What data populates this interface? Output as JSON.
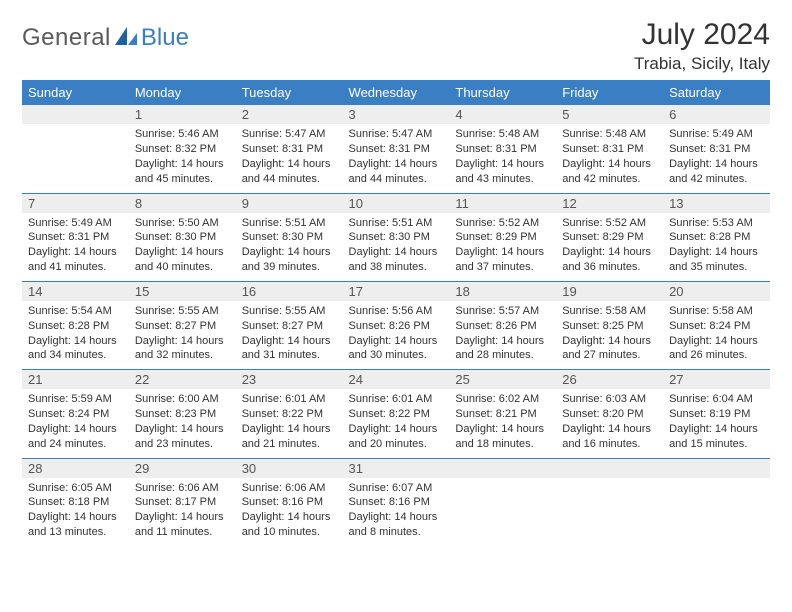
{
  "brand": {
    "name_part1": "General",
    "name_part2": "Blue",
    "color_text": "#5a5a5a",
    "color_accent": "#3a7fc4"
  },
  "header": {
    "month_title": "July 2024",
    "location": "Trabia, Sicily, Italy"
  },
  "style": {
    "header_bg": "#3a7fc4",
    "header_fg": "#ffffff",
    "daynum_bg": "#eeeeee",
    "row_border": "#3a7fc4",
    "body_bg": "#ffffff",
    "text_color": "#333333",
    "th_fontsize": 13,
    "daynum_fontsize": 13,
    "content_fontsize": 11
  },
  "weekdays": [
    "Sunday",
    "Monday",
    "Tuesday",
    "Wednesday",
    "Thursday",
    "Friday",
    "Saturday"
  ],
  "weeks": [
    [
      {
        "n": "",
        "lines": [
          "",
          "",
          "",
          ""
        ]
      },
      {
        "n": "1",
        "lines": [
          "Sunrise: 5:46 AM",
          "Sunset: 8:32 PM",
          "Daylight: 14 hours",
          "and 45 minutes."
        ]
      },
      {
        "n": "2",
        "lines": [
          "Sunrise: 5:47 AM",
          "Sunset: 8:31 PM",
          "Daylight: 14 hours",
          "and 44 minutes."
        ]
      },
      {
        "n": "3",
        "lines": [
          "Sunrise: 5:47 AM",
          "Sunset: 8:31 PM",
          "Daylight: 14 hours",
          "and 44 minutes."
        ]
      },
      {
        "n": "4",
        "lines": [
          "Sunrise: 5:48 AM",
          "Sunset: 8:31 PM",
          "Daylight: 14 hours",
          "and 43 minutes."
        ]
      },
      {
        "n": "5",
        "lines": [
          "Sunrise: 5:48 AM",
          "Sunset: 8:31 PM",
          "Daylight: 14 hours",
          "and 42 minutes."
        ]
      },
      {
        "n": "6",
        "lines": [
          "Sunrise: 5:49 AM",
          "Sunset: 8:31 PM",
          "Daylight: 14 hours",
          "and 42 minutes."
        ]
      }
    ],
    [
      {
        "n": "7",
        "lines": [
          "Sunrise: 5:49 AM",
          "Sunset: 8:31 PM",
          "Daylight: 14 hours",
          "and 41 minutes."
        ]
      },
      {
        "n": "8",
        "lines": [
          "Sunrise: 5:50 AM",
          "Sunset: 8:30 PM",
          "Daylight: 14 hours",
          "and 40 minutes."
        ]
      },
      {
        "n": "9",
        "lines": [
          "Sunrise: 5:51 AM",
          "Sunset: 8:30 PM",
          "Daylight: 14 hours",
          "and 39 minutes."
        ]
      },
      {
        "n": "10",
        "lines": [
          "Sunrise: 5:51 AM",
          "Sunset: 8:30 PM",
          "Daylight: 14 hours",
          "and 38 minutes."
        ]
      },
      {
        "n": "11",
        "lines": [
          "Sunrise: 5:52 AM",
          "Sunset: 8:29 PM",
          "Daylight: 14 hours",
          "and 37 minutes."
        ]
      },
      {
        "n": "12",
        "lines": [
          "Sunrise: 5:52 AM",
          "Sunset: 8:29 PM",
          "Daylight: 14 hours",
          "and 36 minutes."
        ]
      },
      {
        "n": "13",
        "lines": [
          "Sunrise: 5:53 AM",
          "Sunset: 8:28 PM",
          "Daylight: 14 hours",
          "and 35 minutes."
        ]
      }
    ],
    [
      {
        "n": "14",
        "lines": [
          "Sunrise: 5:54 AM",
          "Sunset: 8:28 PM",
          "Daylight: 14 hours",
          "and 34 minutes."
        ]
      },
      {
        "n": "15",
        "lines": [
          "Sunrise: 5:55 AM",
          "Sunset: 8:27 PM",
          "Daylight: 14 hours",
          "and 32 minutes."
        ]
      },
      {
        "n": "16",
        "lines": [
          "Sunrise: 5:55 AM",
          "Sunset: 8:27 PM",
          "Daylight: 14 hours",
          "and 31 minutes."
        ]
      },
      {
        "n": "17",
        "lines": [
          "Sunrise: 5:56 AM",
          "Sunset: 8:26 PM",
          "Daylight: 14 hours",
          "and 30 minutes."
        ]
      },
      {
        "n": "18",
        "lines": [
          "Sunrise: 5:57 AM",
          "Sunset: 8:26 PM",
          "Daylight: 14 hours",
          "and 28 minutes."
        ]
      },
      {
        "n": "19",
        "lines": [
          "Sunrise: 5:58 AM",
          "Sunset: 8:25 PM",
          "Daylight: 14 hours",
          "and 27 minutes."
        ]
      },
      {
        "n": "20",
        "lines": [
          "Sunrise: 5:58 AM",
          "Sunset: 8:24 PM",
          "Daylight: 14 hours",
          "and 26 minutes."
        ]
      }
    ],
    [
      {
        "n": "21",
        "lines": [
          "Sunrise: 5:59 AM",
          "Sunset: 8:24 PM",
          "Daylight: 14 hours",
          "and 24 minutes."
        ]
      },
      {
        "n": "22",
        "lines": [
          "Sunrise: 6:00 AM",
          "Sunset: 8:23 PM",
          "Daylight: 14 hours",
          "and 23 minutes."
        ]
      },
      {
        "n": "23",
        "lines": [
          "Sunrise: 6:01 AM",
          "Sunset: 8:22 PM",
          "Daylight: 14 hours",
          "and 21 minutes."
        ]
      },
      {
        "n": "24",
        "lines": [
          "Sunrise: 6:01 AM",
          "Sunset: 8:22 PM",
          "Daylight: 14 hours",
          "and 20 minutes."
        ]
      },
      {
        "n": "25",
        "lines": [
          "Sunrise: 6:02 AM",
          "Sunset: 8:21 PM",
          "Daylight: 14 hours",
          "and 18 minutes."
        ]
      },
      {
        "n": "26",
        "lines": [
          "Sunrise: 6:03 AM",
          "Sunset: 8:20 PM",
          "Daylight: 14 hours",
          "and 16 minutes."
        ]
      },
      {
        "n": "27",
        "lines": [
          "Sunrise: 6:04 AM",
          "Sunset: 8:19 PM",
          "Daylight: 14 hours",
          "and 15 minutes."
        ]
      }
    ],
    [
      {
        "n": "28",
        "lines": [
          "Sunrise: 6:05 AM",
          "Sunset: 8:18 PM",
          "Daylight: 14 hours",
          "and 13 minutes."
        ]
      },
      {
        "n": "29",
        "lines": [
          "Sunrise: 6:06 AM",
          "Sunset: 8:17 PM",
          "Daylight: 14 hours",
          "and 11 minutes."
        ]
      },
      {
        "n": "30",
        "lines": [
          "Sunrise: 6:06 AM",
          "Sunset: 8:16 PM",
          "Daylight: 14 hours",
          "and 10 minutes."
        ]
      },
      {
        "n": "31",
        "lines": [
          "Sunrise: 6:07 AM",
          "Sunset: 8:16 PM",
          "Daylight: 14 hours",
          "and 8 minutes."
        ]
      },
      {
        "n": "",
        "lines": [
          "",
          "",
          "",
          ""
        ]
      },
      {
        "n": "",
        "lines": [
          "",
          "",
          "",
          ""
        ]
      },
      {
        "n": "",
        "lines": [
          "",
          "",
          "",
          ""
        ]
      }
    ]
  ]
}
